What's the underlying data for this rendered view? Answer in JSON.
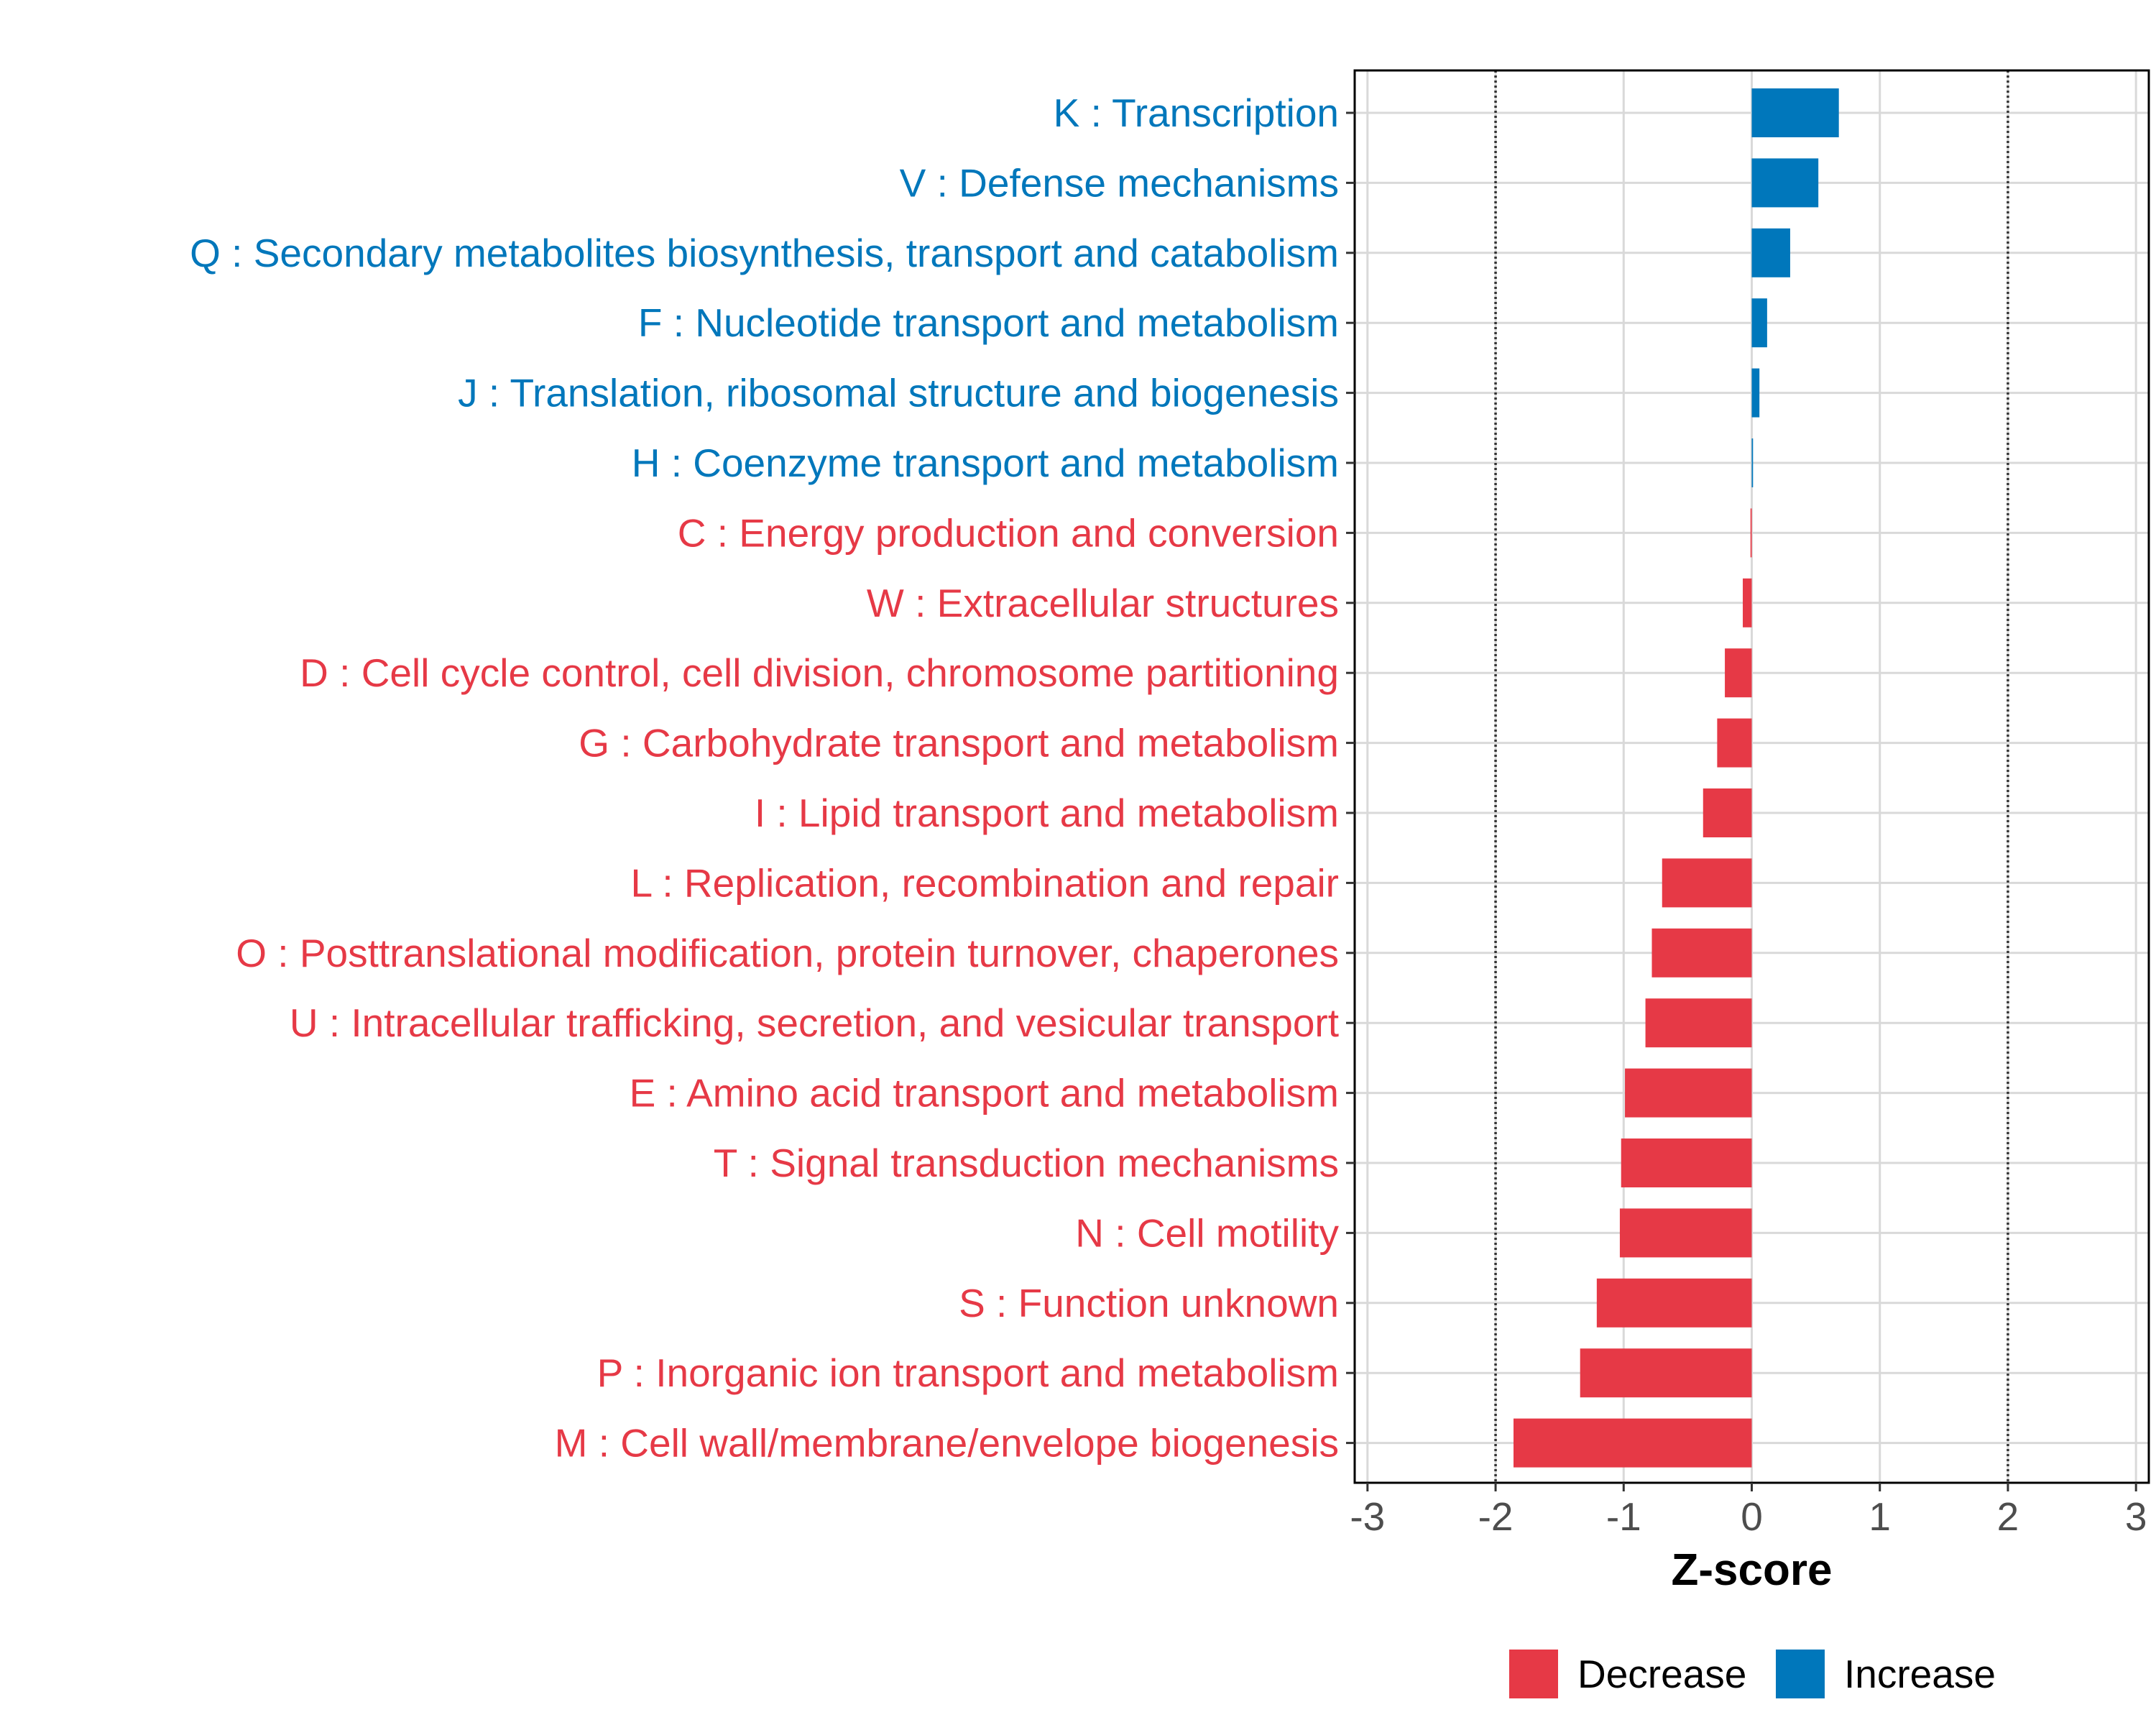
{
  "chart_data": {
    "type": "bar",
    "orientation": "horizontal",
    "title": "",
    "xlabel": "Z-score",
    "ylabel": "",
    "xlim": [
      -3.1,
      3.1
    ],
    "xticks": [
      -3,
      -2,
      -1,
      0,
      1,
      2,
      3
    ],
    "reference_lines": [
      -2,
      2
    ],
    "grid": true,
    "legend_position": "bottom",
    "legend": [
      {
        "name": "Decrease",
        "color": "#E63946"
      },
      {
        "name": "Increase",
        "color": "#0077BB"
      }
    ],
    "categories": [
      "K : Transcription",
      "V : Defense mechanisms",
      "Q : Secondary metabolites biosynthesis, transport and catabolism",
      "F : Nucleotide transport and metabolism",
      "J : Translation, ribosomal structure and biogenesis",
      "H : Coenzyme transport and metabolism",
      "C : Energy production and conversion",
      "W : Extracellular structures",
      "D : Cell cycle control, cell division, chromosome partitioning",
      "G : Carbohydrate transport and metabolism",
      "I : Lipid transport and metabolism",
      "L : Replication, recombination and repair",
      "O : Posttranslational modification, protein turnover, chaperones",
      "U : Intracellular trafficking, secretion, and vesicular transport",
      "E : Amino acid transport and metabolism",
      "T : Signal transduction mechanisms",
      "N : Cell motility",
      "S : Function unknown",
      "P : Inorganic ion transport and metabolism",
      "M : Cell wall/membrane/envelope biogenesis"
    ],
    "values": [
      0.68,
      0.52,
      0.3,
      0.12,
      0.06,
      0.01,
      -0.01,
      -0.07,
      -0.21,
      -0.27,
      -0.38,
      -0.7,
      -0.78,
      -0.83,
      -0.99,
      -1.02,
      -1.03,
      -1.21,
      -1.34,
      -1.86
    ]
  }
}
